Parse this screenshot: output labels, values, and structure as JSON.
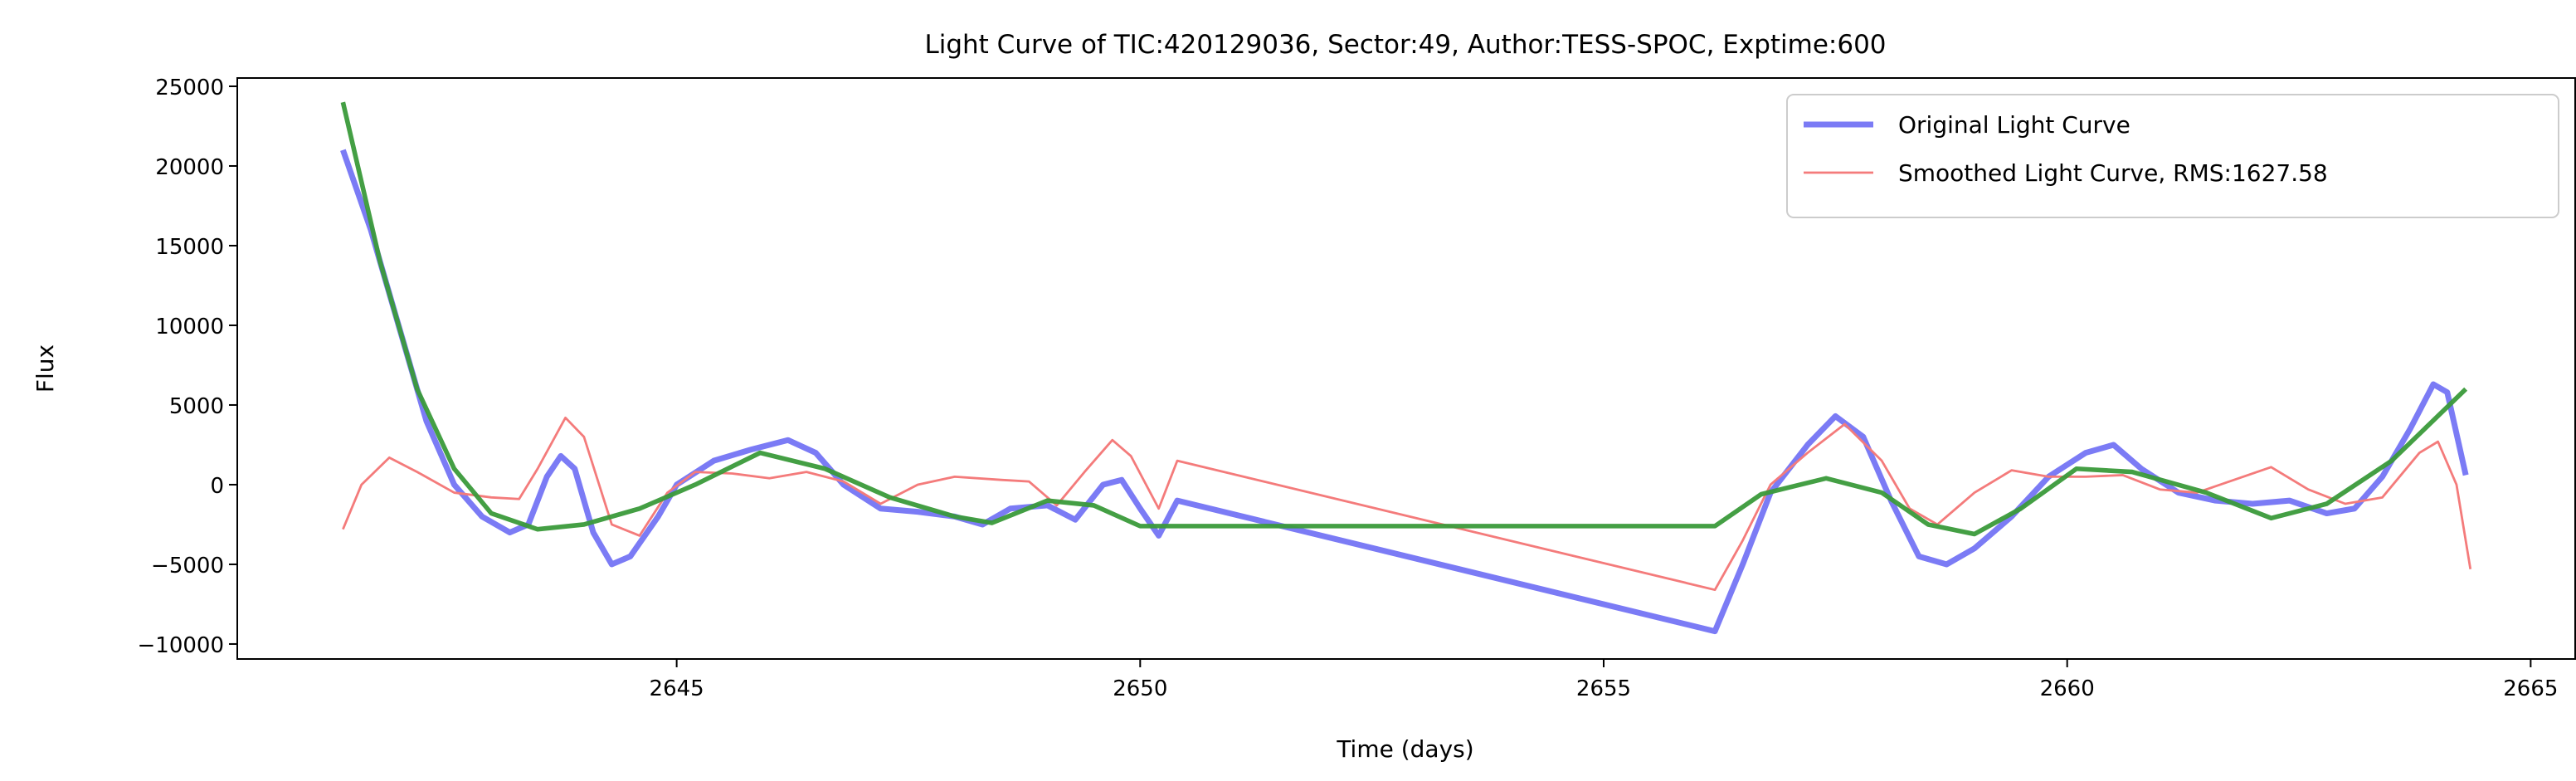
{
  "chart_data": {
    "type": "line",
    "title": "Light Curve of TIC:420129036, Sector:49, Author:TESS-SPOC, Exptime:600",
    "xlabel": "Time (days)",
    "ylabel": "Flux",
    "xlim": [
      2640.26,
      2665.48
    ],
    "ylim": [
      -10940,
      25520
    ],
    "xticks": [
      2645,
      2650,
      2655,
      2660,
      2665
    ],
    "yticks": [
      {
        "value": -10000,
        "label": "−10000"
      },
      {
        "value": -5000,
        "label": "−5000"
      },
      0,
      5000,
      10000,
      15000,
      20000,
      25000
    ],
    "legend": "upper right",
    "series": [
      {
        "name": "Original Light Curve",
        "color": "#7b7bf5",
        "x": [
          2641.4,
          2641.7,
          2642.0,
          2642.3,
          2642.6,
          2642.9,
          2643.2,
          2643.4,
          2643.6,
          2643.75,
          2643.9,
          2644.1,
          2644.3,
          2644.5,
          2644.8,
          2645.0,
          2645.4,
          2645.8,
          2646.2,
          2646.5,
          2646.8,
          2647.2,
          2647.6,
          2648.0,
          2648.3,
          2648.6,
          2649.0,
          2649.3,
          2649.6,
          2649.8,
          2650.0,
          2650.2,
          2650.4,
          2656.2,
          2656.5,
          2656.8,
          2657.2,
          2657.5,
          2657.8,
          2658.1,
          2658.4,
          2658.7,
          2659.0,
          2659.4,
          2659.8,
          2660.2,
          2660.5,
          2660.8,
          2661.2,
          2661.6,
          2662.0,
          2662.4,
          2662.8,
          2663.1,
          2663.4,
          2663.7,
          2663.95,
          2664.1,
          2664.3
        ],
        "values": [
          21000,
          16000,
          10000,
          4000,
          0,
          -2000,
          -3000,
          -2500,
          500,
          1800,
          1000,
          -3000,
          -5000,
          -4500,
          -2000,
          0,
          1500,
          2200,
          2800,
          2000,
          0,
          -1500,
          -1700,
          -2000,
          -2500,
          -1500,
          -1300,
          -2200,
          0,
          300,
          -1500,
          -3200,
          -1000,
          -9200,
          -5000,
          -500,
          2500,
          4300,
          3000,
          -1000,
          -4500,
          -5000,
          -4000,
          -2000,
          500,
          2000,
          2500,
          1000,
          -500,
          -1000,
          -1200,
          -1000,
          -1800,
          -1500,
          500,
          3500,
          6300,
          5800,
          600
        ]
      },
      {
        "name": "Smoothed Light Curve, RMS:1627.58",
        "color": "#f47b7b",
        "x": [
          2641.4,
          2641.6,
          2641.9,
          2642.2,
          2642.6,
          2643.0,
          2643.3,
          2643.5,
          2643.8,
          2644.0,
          2644.3,
          2644.6,
          2644.9,
          2645.2,
          2645.6,
          2646.0,
          2646.4,
          2646.8,
          2647.2,
          2647.6,
          2648.0,
          2648.5,
          2648.8,
          2649.1,
          2649.4,
          2649.7,
          2649.9,
          2650.2,
          2650.4,
          2656.2,
          2656.5,
          2656.8,
          2657.2,
          2657.6,
          2658.0,
          2658.3,
          2658.6,
          2659.0,
          2659.4,
          2659.8,
          2660.2,
          2660.6,
          2661.0,
          2661.4,
          2661.8,
          2662.2,
          2662.6,
          2663.0,
          2663.4,
          2663.8,
          2664.0,
          2664.2,
          2664.35
        ],
        "values": [
          -2800,
          0,
          1700,
          800,
          -500,
          -800,
          -900,
          1000,
          4200,
          3000,
          -2500,
          -3200,
          -500,
          800,
          700,
          400,
          800,
          200,
          -1200,
          0,
          500,
          300,
          200,
          -1300,
          800,
          2800,
          1800,
          -1500,
          1500,
          -6600,
          -3500,
          0,
          2000,
          3800,
          1500,
          -1500,
          -2500,
          -500,
          900,
          500,
          500,
          600,
          -300,
          -500,
          300,
          1100,
          -300,
          -1200,
          -800,
          2000,
          2700,
          0,
          -5300
        ]
      },
      {
        "color": "#3a9a3a",
        "x": [
          2641.4,
          2641.8,
          2642.2,
          2642.6,
          2643.0,
          2643.5,
          2644.0,
          2644.6,
          2645.2,
          2645.9,
          2646.6,
          2647.3,
          2648.0,
          2648.4,
          2649.0,
          2649.5,
          2650.0,
          2650.4,
          2656.2,
          2656.7,
          2657.4,
          2658.0,
          2658.5,
          2659.0,
          2659.5,
          2660.1,
          2660.7,
          2661.5,
          2662.2,
          2662.8,
          2663.5,
          2664.3
        ],
        "values": [
          24000,
          14000,
          6000,
          1000,
          -1800,
          -2800,
          -2500,
          -1500,
          0,
          2000,
          1000,
          -800,
          -2000,
          -2400,
          -1000,
          -1300,
          -2600,
          -2600,
          -2600,
          -600,
          400,
          -500,
          -2500,
          -3100,
          -1500,
          1000,
          800,
          -500,
          -2100,
          -1200,
          1500,
          6000
        ]
      }
    ]
  }
}
